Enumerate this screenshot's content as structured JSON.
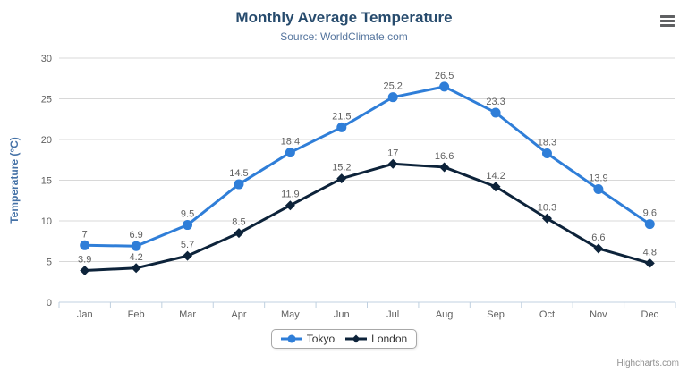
{
  "header": {
    "title": "Monthly Average Temperature",
    "subtitle": "Source: WorldClimate.com"
  },
  "chart_data": {
    "type": "line",
    "categories": [
      "Jan",
      "Feb",
      "Mar",
      "Apr",
      "May",
      "Jun",
      "Jul",
      "Aug",
      "Sep",
      "Oct",
      "Nov",
      "Dec"
    ],
    "series": [
      {
        "name": "Tokyo",
        "color": "#2F7ED8",
        "marker": "circle",
        "values": [
          7,
          6.9,
          9.5,
          14.5,
          18.4,
          21.5,
          25.2,
          26.5,
          23.3,
          18.3,
          13.9,
          9.6
        ]
      },
      {
        "name": "London",
        "color": "#0D233A",
        "marker": "diamond",
        "values": [
          3.9,
          4.2,
          5.7,
          8.5,
          11.9,
          15.2,
          17,
          16.6,
          14.2,
          10.3,
          6.6,
          4.8
        ]
      }
    ],
    "title": "Monthly Average Temperature",
    "subtitle": "Source: WorldClimate.com",
    "xlabel": "",
    "ylabel": "Temperature (°C)",
    "ylim": [
      0,
      30
    ],
    "ytick_step": 5,
    "grid": true,
    "data_labels": true,
    "legend_position": "bottom"
  },
  "credits": {
    "label": "Highcharts.com"
  },
  "icons": {
    "context_menu": "hamburger-icon"
  },
  "colors": {
    "title": "#274B6D",
    "subtitle": "#55759E",
    "axis_title": "#4572A7",
    "axis_labels": "#606060",
    "data_labels": "#606060",
    "grid_line": "#D8D8D8",
    "axis_line": "#C0D0E0",
    "legend_text": "#333333",
    "credits": "#909090",
    "menu_icon": "#5F6062"
  }
}
